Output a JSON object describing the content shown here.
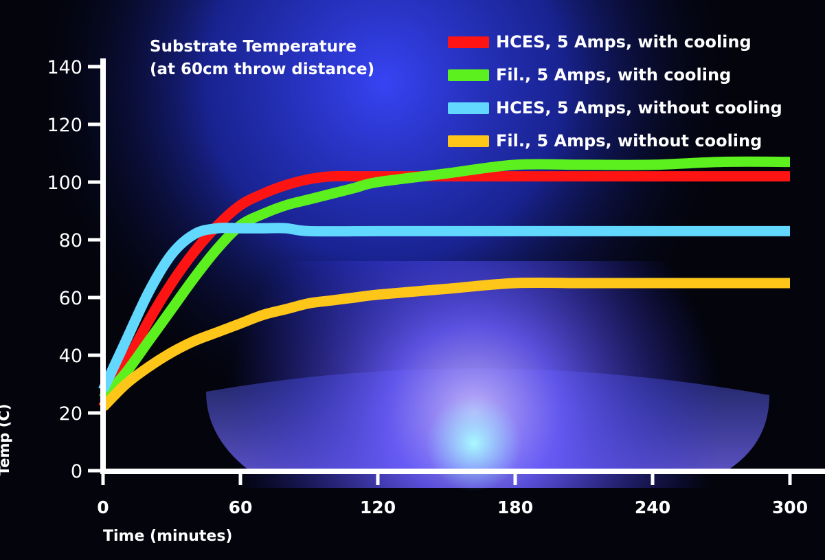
{
  "colors": {
    "axis": "#ffffff",
    "text": "#ffffff",
    "background": "#03040c"
  },
  "chart_data": {
    "type": "line",
    "title_lines": [
      "Substrate Temperature",
      "(at 60cm throw distance)"
    ],
    "xlabel": "Time (minutes)",
    "ylabel": "Temp (C)",
    "xlim": [
      0,
      300
    ],
    "ylim": [
      0,
      140
    ],
    "x_ticks": [
      0,
      60,
      120,
      180,
      240,
      300
    ],
    "y_ticks": [
      0,
      20,
      40,
      60,
      80,
      100,
      120,
      140
    ],
    "grid": false,
    "legend_position": "top-right",
    "series": [
      {
        "name": "HCES, 5 Amps, with cooling",
        "color": "#ff1414",
        "x": [
          0,
          10,
          20,
          30,
          40,
          50,
          60,
          70,
          80,
          90,
          100,
          110,
          120,
          150,
          180,
          210,
          240,
          270,
          300
        ],
        "y": [
          22,
          37,
          52,
          65,
          76,
          85,
          92,
          96,
          99,
          101,
          102,
          102,
          102,
          102,
          102,
          102,
          102,
          102,
          102
        ]
      },
      {
        "name": "Fil., 5 Amps, with cooling",
        "color": "#5cf01e",
        "x": [
          0,
          10,
          20,
          30,
          40,
          50,
          60,
          70,
          80,
          90,
          100,
          110,
          120,
          150,
          180,
          210,
          240,
          270,
          300
        ],
        "y": [
          25,
          34,
          45,
          56,
          67,
          77,
          85,
          89,
          92,
          94,
          96,
          98,
          100,
          103,
          106,
          106,
          106,
          107,
          107
        ]
      },
      {
        "name": "HCES, 5 Amps, without cooling",
        "color": "#62d8ff",
        "x": [
          0,
          10,
          20,
          30,
          40,
          50,
          60,
          70,
          80,
          90,
          120,
          150,
          180,
          210,
          240,
          270,
          300
        ],
        "y": [
          28,
          45,
          62,
          75,
          82,
          84,
          84,
          84,
          84,
          83,
          83,
          83,
          83,
          83,
          83,
          83,
          83
        ]
      },
      {
        "name": "Fil., 5 Amps, without cooling",
        "color": "#ffc61a",
        "x": [
          0,
          10,
          20,
          30,
          40,
          50,
          60,
          70,
          80,
          90,
          100,
          110,
          120,
          150,
          180,
          210,
          240,
          270,
          300
        ],
        "y": [
          22,
          30,
          36,
          41,
          45,
          48,
          51,
          54,
          56,
          58,
          59,
          60,
          61,
          63,
          65,
          65,
          65,
          65,
          65
        ]
      }
    ]
  }
}
